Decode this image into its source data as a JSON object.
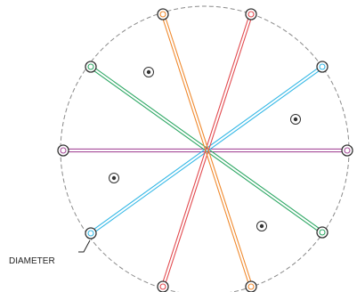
{
  "diagram": {
    "label": "DIAMETER"
  },
  "colors": {
    "circle_outline": "#8a8a8a",
    "purple_diameter": "#a64d9a",
    "green_diameter": "#2fa865",
    "cyan_diameter": "#35b8e6",
    "red_diameter": "#e24a4f",
    "orange_diameter": "#f08a2e",
    "terminal_ring": "#333333",
    "inner_dot": "#333333"
  },
  "diameters": [
    {
      "name": "purple-diameter-line",
      "color_key": "purple_diameter"
    },
    {
      "name": "green-diameter-line",
      "color_key": "green_diameter"
    },
    {
      "name": "cyan-diameter-line",
      "color_key": "cyan_diameter"
    },
    {
      "name": "red-diameter-line",
      "color_key": "red_diameter"
    },
    {
      "name": "orange-diameter-line",
      "color_key": "orange_diameter"
    }
  ]
}
